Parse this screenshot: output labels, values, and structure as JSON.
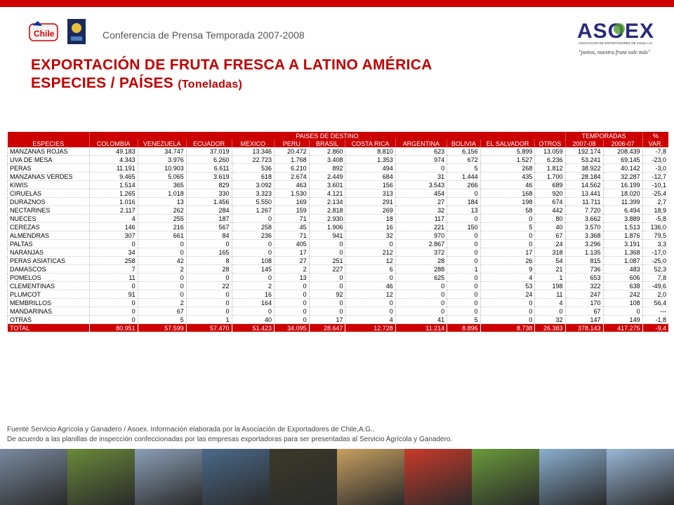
{
  "header": {
    "conference": "Conferencia de Prensa Temporada 2007-2008",
    "title_line1": "EXPORTACIÓN DE FRUTA FRESCA A LATINO AMÉRICA",
    "title_line2": "ESPECIES / PAÍSES",
    "title_units": "(Toneladas)",
    "logo_chile": "Chile",
    "logo_asoex": "ASOEX",
    "asoex_sub": "ASOCIACION DE EXPORTADORES DE CHILE A.G.",
    "asoex_slogan": "\"juntos, nuestra fruta vale más\""
  },
  "table": {
    "group_dest": "PAISES DE DESTINO",
    "group_temp": "TEMPORADAS",
    "group_pct": "%",
    "columns": [
      "ESPECIES",
      "COLOMBIA",
      "VENEZUELA",
      "ECUADOR",
      "MEXICO",
      "PERU",
      "BRASIL",
      "COSTA RICA",
      "ARGENTINA",
      "BOLIVIA",
      "EL SALVADOR",
      "OTROS",
      "2007-08",
      "2006-07",
      "VAR."
    ],
    "rows": [
      [
        "MANZANAS ROJAS",
        "49.183",
        "34.747",
        "37.019",
        "13.346",
        "20.472",
        "2.860",
        "8.810",
        "623",
        "6.156",
        "5.899",
        "13.059",
        "192.174",
        "208.439",
        "-7,8"
      ],
      [
        "UVA DE MESA",
        "4.343",
        "3.976",
        "6.260",
        "22.723",
        "1.768",
        "3.408",
        "1.353",
        "974",
        "672",
        "1.527",
        "6.236",
        "53.241",
        "69.145",
        "-23,0"
      ],
      [
        "PERAS",
        "11.191",
        "10.903",
        "6.611",
        "536",
        "6.210",
        "892",
        "494",
        "0",
        "5",
        "268",
        "1.812",
        "38.922",
        "40.142",
        "-3,0"
      ],
      [
        "MANZANAS VERDES",
        "9.465",
        "5.065",
        "3.619",
        "618",
        "2.674",
        "2.449",
        "684",
        "31",
        "1.444",
        "435",
        "1.700",
        "28.184",
        "32.287",
        "-12,7"
      ],
      [
        "KIWIS",
        "1.514",
        "365",
        "829",
        "3.092",
        "463",
        "3.601",
        "156",
        "3.543",
        "266",
        "46",
        "689",
        "14.562",
        "16.199",
        "-10,1"
      ],
      [
        "CIRUELAS",
        "1.265",
        "1.018",
        "330",
        "3.323",
        "1.530",
        "4.121",
        "313",
        "454",
        "0",
        "168",
        "920",
        "13.441",
        "18.020",
        "-25,4"
      ],
      [
        "DURAZNOS",
        "1.016",
        "13",
        "1.456",
        "5.550",
        "169",
        "2.134",
        "291",
        "27",
        "184",
        "198",
        "674",
        "11.711",
        "11.399",
        "2,7"
      ],
      [
        "NECTARINES",
        "2.117",
        "262",
        "284",
        "1.267",
        "159",
        "2.818",
        "269",
        "32",
        "13",
        "58",
        "442",
        "7.720",
        "6.494",
        "18,9"
      ],
      [
        "NUECES",
        "4",
        "255",
        "187",
        "0",
        "71",
        "2.930",
        "18",
        "117",
        "0",
        "0",
        "80",
        "3.662",
        "3.889",
        "-5,8"
      ],
      [
        "CEREZAS",
        "146",
        "216",
        "567",
        "258",
        "45",
        "1.906",
        "16",
        "221",
        "150",
        "5",
        "40",
        "3.570",
        "1.513",
        "136,0"
      ],
      [
        "ALMENDRAS",
        "307",
        "661",
        "84",
        "236",
        "71",
        "941",
        "32",
        "970",
        "0",
        "0",
        "67",
        "3.368",
        "1.876",
        "79,5"
      ],
      [
        "PALTAS",
        "0",
        "0",
        "0",
        "0",
        "405",
        "0",
        "0",
        "2.867",
        "0",
        "0",
        "24",
        "3.296",
        "3.191",
        "3,3"
      ],
      [
        "NARANJAS",
        "34",
        "0",
        "165",
        "0",
        "17",
        "0",
        "212",
        "372",
        "0",
        "17",
        "318",
        "1.135",
        "1.368",
        "-17,0"
      ],
      [
        "PERAS ASIATICAS",
        "258",
        "42",
        "8",
        "108",
        "27",
        "251",
        "12",
        "28",
        "0",
        "26",
        "54",
        "815",
        "1.087",
        "-25,0"
      ],
      [
        "DAMASCOS",
        "7",
        "2",
        "28",
        "145",
        "2",
        "227",
        "6",
        "288",
        "1",
        "9",
        "21",
        "736",
        "483",
        "52,3"
      ],
      [
        "POMELOS",
        "11",
        "0",
        "0",
        "0",
        "13",
        "0",
        "0",
        "625",
        "0",
        "4",
        "1",
        "653",
        "606",
        "7,8"
      ],
      [
        "CLEMENTINAS",
        "0",
        "0",
        "22",
        "2",
        "0",
        "0",
        "46",
        "0",
        "0",
        "53",
        "198",
        "322",
        "638",
        "-49,6"
      ],
      [
        "PLUMCOT",
        "91",
        "0",
        "0",
        "16",
        "0",
        "92",
        "12",
        "0",
        "0",
        "24",
        "11",
        "247",
        "242",
        "2,0"
      ],
      [
        "MEMBRILLOS",
        "0",
        "2",
        "0",
        "164",
        "0",
        "0",
        "0",
        "0",
        "0",
        "0",
        "4",
        "170",
        "108",
        "56,4"
      ],
      [
        "MANDARINAS",
        "0",
        "67",
        "0",
        "0",
        "0",
        "0",
        "0",
        "0",
        "0",
        "0",
        "0",
        "67",
        "0",
        "---"
      ],
      [
        "OTRAS",
        "0",
        "5",
        "1",
        "40",
        "0",
        "17",
        "4",
        "41",
        "5",
        "0",
        "32",
        "147",
        "149",
        "-1,8"
      ]
    ],
    "total": [
      "TOTAL",
      "80.951",
      "57.599",
      "57.470",
      "51.423",
      "34.095",
      "28.647",
      "12.728",
      "11.214",
      "8.896",
      "8.738",
      "26.383",
      "378.143",
      "417.275",
      "-9,4"
    ]
  },
  "footer": {
    "line1": "Fuente Servicio Agrícola y Ganadero / Asoex. Información elaborada por la Asociación de Exportadores de Chile,A.G..",
    "line2": "De acuerdo a las planillas de inspección confeccionadas por las empresas exportadoras  para ser presentadas al Servicio Agrícola y Ganadero."
  },
  "colors": {
    "accent": "#cc0000",
    "strip": [
      "#7a8aa0",
      "#6a8a3a",
      "#8ca0b8",
      "#4a6a8a",
      "#3a3a2a",
      "#c8a060",
      "#c83a2a",
      "#6a9a3a",
      "#8ab0d0",
      "#9ab8d8"
    ]
  }
}
